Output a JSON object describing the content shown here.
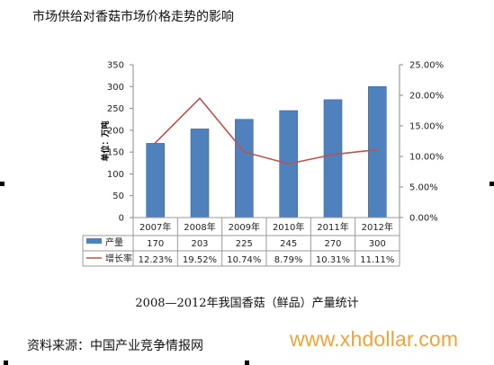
{
  "page": {
    "title": "市场供给对香菇市场价格走势的影响",
    "caption": "2008—2012年我国香菇（鲜品）产量统计",
    "source": "资料来源：中国产业竞争情报网",
    "watermark": "www.xhdollar.com"
  },
  "chart_data": {
    "type": "bar",
    "title": "",
    "ylabel": "单位：万吨",
    "categories": [
      "2007年",
      "2008年",
      "2009年",
      "2010年",
      "2011年",
      "2012年"
    ],
    "series": [
      {
        "name": "产量",
        "type": "bar",
        "axis": "left",
        "color": "#4f81bd",
        "values": [
          170,
          203,
          225,
          245,
          270,
          300
        ],
        "labels": [
          "170",
          "203",
          "225",
          "245",
          "270",
          "300"
        ]
      },
      {
        "name": "增长率",
        "type": "line",
        "axis": "right",
        "color": "#c0504d",
        "values": [
          12.23,
          19.52,
          10.74,
          8.79,
          10.31,
          11.11
        ],
        "labels": [
          "12.23%",
          "19.52%",
          "10.74%",
          "8.79%",
          "10.31%",
          "11.11%"
        ]
      }
    ],
    "y_left": {
      "min": 0,
      "max": 350,
      "ticks": [
        0,
        50,
        100,
        150,
        200,
        250,
        300,
        350
      ]
    },
    "y_right": {
      "min": 0,
      "max": 25,
      "ticks": [
        0,
        5,
        10,
        15,
        20,
        25
      ],
      "tick_labels": [
        "0.00%",
        "5.00%",
        "10.00%",
        "15.00%",
        "20.00%",
        "25.00%"
      ]
    },
    "grid": false,
    "legend": "data-table-below"
  }
}
